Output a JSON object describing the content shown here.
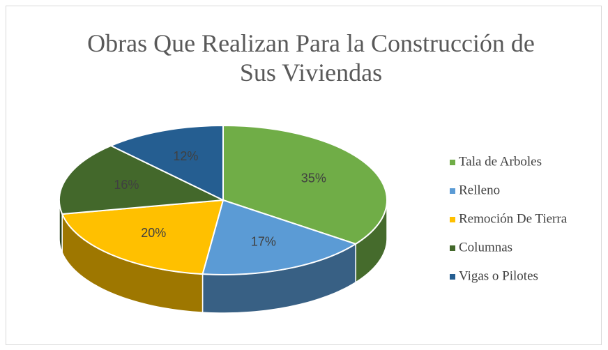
{
  "chart_data": {
    "type": "pie",
    "title": [
      "Obras Que Realizan Para la Construcción de",
      "Sus Viviendas"
    ],
    "categories": [
      "Tala de Arboles",
      "Relleno",
      "Remoción De Tierra",
      "Columnas",
      "Vigas o Pilotes"
    ],
    "values": [
      35,
      17,
      20,
      16,
      12
    ],
    "value_labels": [
      "35%",
      "17%",
      "20%",
      "16%",
      "12%"
    ],
    "colors": [
      "#70ad47",
      "#5b9bd5",
      "#ffc000",
      "#43682b",
      "#255e91"
    ],
    "legend": "right"
  }
}
